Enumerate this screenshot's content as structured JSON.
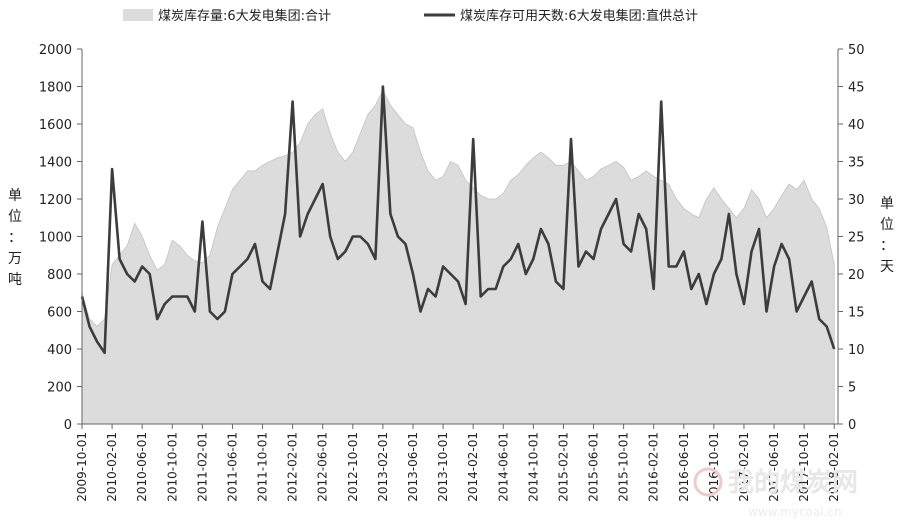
{
  "chart_data": {
    "type": "area",
    "x_dates": [
      "2009-10",
      "2009-11",
      "2009-12",
      "2010-01",
      "2010-02",
      "2010-03",
      "2010-04",
      "2010-05",
      "2010-06",
      "2010-07",
      "2010-08",
      "2010-09",
      "2010-10",
      "2010-11",
      "2010-12",
      "2011-01",
      "2011-02",
      "2011-03",
      "2011-04",
      "2011-05",
      "2011-06",
      "2011-07",
      "2011-08",
      "2011-09",
      "2011-10",
      "2011-11",
      "2011-12",
      "2012-01",
      "2012-02",
      "2012-03",
      "2012-04",
      "2012-05",
      "2012-06",
      "2012-07",
      "2012-08",
      "2012-09",
      "2012-10",
      "2012-11",
      "2012-12",
      "2013-01",
      "2013-02",
      "2013-03",
      "2013-04",
      "2013-05",
      "2013-06",
      "2013-07",
      "2013-08",
      "2013-09",
      "2013-10",
      "2013-11",
      "2013-12",
      "2014-01",
      "2014-02",
      "2014-03",
      "2014-04",
      "2014-05",
      "2014-06",
      "2014-07",
      "2014-08",
      "2014-09",
      "2014-10",
      "2014-11",
      "2014-12",
      "2015-01",
      "2015-02",
      "2015-03",
      "2015-04",
      "2015-05",
      "2015-06",
      "2015-07",
      "2015-08",
      "2015-09",
      "2015-10",
      "2015-11",
      "2015-12",
      "2016-01",
      "2016-02",
      "2016-03",
      "2016-04",
      "2016-05",
      "2016-06",
      "2016-07",
      "2016-08",
      "2016-09",
      "2016-10",
      "2016-11",
      "2016-12",
      "2017-01",
      "2017-02",
      "2017-03",
      "2017-04",
      "2017-05",
      "2017-06",
      "2017-07",
      "2017-08",
      "2017-09",
      "2017-10",
      "2017-11",
      "2017-12",
      "2018-01",
      "2018-02"
    ],
    "series": [
      {
        "name": "煤炭库存量:6大发电集团:合计",
        "axis": "left",
        "style": "area",
        "color": "#dcdcdc",
        "values": [
          700,
          560,
          520,
          560,
          850,
          900,
          950,
          1070,
          1000,
          900,
          820,
          850,
          980,
          950,
          900,
          870,
          860,
          900,
          1050,
          1150,
          1250,
          1300,
          1350,
          1350,
          1380,
          1400,
          1420,
          1430,
          1450,
          1500,
          1600,
          1650,
          1680,
          1550,
          1450,
          1400,
          1450,
          1550,
          1650,
          1700,
          1780,
          1700,
          1650,
          1600,
          1580,
          1450,
          1350,
          1300,
          1320,
          1400,
          1380,
          1300,
          1260,
          1220,
          1200,
          1200,
          1230,
          1300,
          1330,
          1380,
          1420,
          1450,
          1420,
          1380,
          1380,
          1400,
          1350,
          1300,
          1320,
          1360,
          1380,
          1400,
          1370,
          1300,
          1320,
          1350,
          1320,
          1300,
          1280,
          1200,
          1150,
          1120,
          1100,
          1200,
          1260,
          1200,
          1150,
          1100,
          1150,
          1250,
          1200,
          1100,
          1150,
          1220,
          1280,
          1250,
          1300,
          1200,
          1150,
          1050,
          850
        ]
      },
      {
        "name": "煤炭库存可用天数:6大发电集团:直供总计",
        "axis": "right",
        "style": "line",
        "color": "#3c3c3c",
        "values": [
          17,
          13,
          11,
          9.5,
          34,
          22,
          20,
          19,
          21,
          20,
          14,
          16,
          17,
          17,
          17,
          15,
          27,
          15,
          14,
          15,
          20,
          21,
          22,
          24,
          19,
          18,
          23,
          28,
          43,
          25,
          28,
          30,
          32,
          25,
          22,
          23,
          25,
          25,
          24,
          22,
          45,
          28,
          25,
          24,
          20,
          15,
          18,
          17,
          21,
          20,
          19,
          16,
          38,
          17,
          18,
          18,
          21,
          22,
          24,
          20,
          22,
          26,
          24,
          19,
          18,
          38,
          21,
          23,
          22,
          26,
          28,
          30,
          24,
          23,
          28,
          26,
          18,
          43,
          21,
          21,
          23,
          18,
          20,
          16,
          20,
          22,
          28,
          20,
          16,
          23,
          26,
          15,
          21,
          24,
          22,
          15,
          17,
          19,
          14,
          13,
          10
        ]
      }
    ],
    "left_axis": {
      "label": "单位：万吨",
      "ylim": [
        0,
        2000
      ],
      "ticks": [
        "0",
        "200",
        "400",
        "600",
        "800",
        "1000",
        "1200",
        "1400",
        "1600",
        "1800",
        "2000"
      ]
    },
    "right_axis": {
      "label": "单位：天",
      "ylim": [
        0,
        50
      ],
      "ticks": [
        "0",
        "5",
        "10",
        "15",
        "20",
        "25",
        "30",
        "35",
        "40",
        "45",
        "50"
      ]
    },
    "x_tick_labels": [
      "2009-10-01",
      "2010-02-01",
      "2010-06-01",
      "2010-10-01",
      "2011-02-01",
      "2011-06-01",
      "2011-10-01",
      "2012-02-01",
      "2012-06-01",
      "2012-10-01",
      "2013-02-01",
      "2013-06-01",
      "2013-10-01",
      "2014-02-01",
      "2014-06-01",
      "2014-10-01",
      "2015-02-01",
      "2015-06-01",
      "2015-10-01",
      "2016-02-01",
      "2016-06-01",
      "2016-10-01",
      "2017-02-01",
      "2017-06-01",
      "2017-10-01",
      "2018-02-01"
    ],
    "legend": {
      "position": "top"
    },
    "grid": false
  },
  "watermark": {
    "text": "我的煤炭网",
    "url": "www.mycoal.cn"
  }
}
